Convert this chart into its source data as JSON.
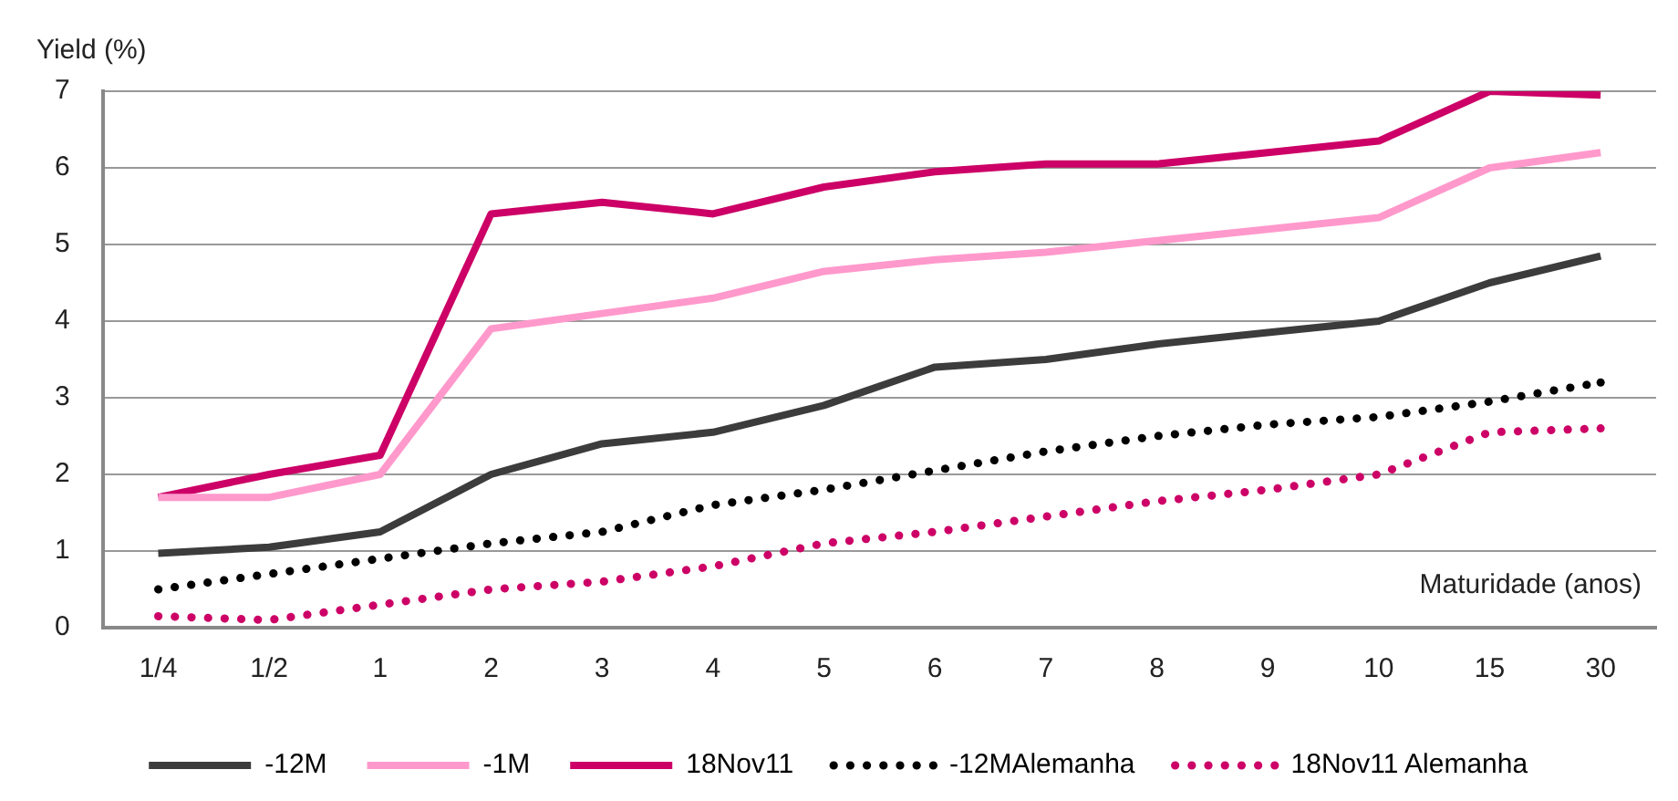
{
  "chart_data": {
    "type": "line",
    "ylabel": "Yield (%)",
    "xlabel": "Maturidade (anos)",
    "categories": [
      "1/4",
      "1/2",
      "1",
      "2",
      "3",
      "4",
      "5",
      "6",
      "7",
      "8",
      "9",
      "10",
      "15",
      "30"
    ],
    "series": [
      {
        "name": "-12M",
        "color": "#3c3c3c",
        "line_style": "solid",
        "values": [
          0.97,
          1.05,
          1.25,
          2.0,
          2.4,
          2.55,
          2.9,
          3.4,
          3.5,
          3.7,
          3.85,
          4.0,
          4.5,
          4.85
        ]
      },
      {
        "name": "-1M",
        "color": "#ff99cc",
        "line_style": "solid",
        "values": [
          1.7,
          1.7,
          2.0,
          3.9,
          4.1,
          4.3,
          4.65,
          4.8,
          4.9,
          5.05,
          5.2,
          5.35,
          6.0,
          6.2
        ]
      },
      {
        "name": "18Nov11",
        "color": "#cc0066",
        "line_style": "solid",
        "values": [
          1.7,
          2.0,
          2.25,
          5.4,
          5.55,
          5.4,
          5.75,
          5.95,
          6.05,
          6.05,
          6.2,
          6.35,
          7.0,
          6.95
        ]
      },
      {
        "name": "-12MAlemanha",
        "color": "#000000",
        "line_style": "dotted",
        "values": [
          0.5,
          0.7,
          0.9,
          1.1,
          1.25,
          1.6,
          1.8,
          2.05,
          2.3,
          2.5,
          2.65,
          2.75,
          2.95,
          3.2
        ]
      },
      {
        "name": "18Nov11 Alemanha",
        "color": "#cc0066",
        "line_style": "dotted",
        "values": [
          0.15,
          0.1,
          0.3,
          0.5,
          0.6,
          0.8,
          1.1,
          1.25,
          1.45,
          1.65,
          1.8,
          2.0,
          2.55,
          2.6
        ]
      }
    ],
    "ylim": [
      0,
      7
    ],
    "yticks": [
      0,
      1,
      2,
      3,
      4,
      5,
      6,
      7
    ],
    "grid": "y",
    "legend": "bottom",
    "marker": "none"
  }
}
